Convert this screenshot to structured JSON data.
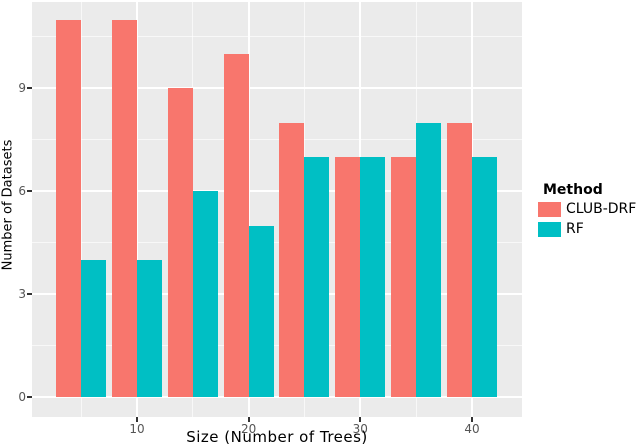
{
  "chart_data": {
    "type": "bar",
    "title": "",
    "xlabel": "Size (Number of Trees)",
    "ylabel": "Number of Datasets",
    "categories": [
      5,
      10,
      15,
      20,
      25,
      30,
      35,
      40
    ],
    "series": [
      {
        "name": "CLUB-DRF",
        "color": "#F8766D",
        "values": [
          11,
          11,
          9,
          10,
          8,
          7,
          7,
          8
        ]
      },
      {
        "name": "RF",
        "color": "#00BFC4",
        "values": [
          4,
          4,
          6,
          5,
          7,
          7,
          8,
          7
        ]
      }
    ],
    "x_tick_labels": [
      "10",
      "20",
      "30",
      "40"
    ],
    "x_tick_values": [
      10,
      20,
      30,
      40
    ],
    "x_minor_values": [
      5,
      15,
      25,
      35,
      45
    ],
    "y_tick_labels": [
      "0",
      "3",
      "6",
      "9"
    ],
    "y_tick_values": [
      0,
      3,
      6,
      9
    ],
    "y_minor_values": [
      1.5,
      4.5,
      7.5,
      10.5
    ],
    "ylim": [
      0,
      11.5
    ],
    "legend_position": "right",
    "grid": "on",
    "colors": {
      "panel_bg": "#EBEBEB",
      "grid_major": "#FFFFFF",
      "club_drf": "#F8766D",
      "rf": "#00BFC4",
      "tick_label": "#555555",
      "axis_title": "#000000"
    }
  },
  "legend": {
    "title": "Method",
    "entries": [
      {
        "label": "CLUB-DRF",
        "color": "#F8766D"
      },
      {
        "label": "RF",
        "color": "#00BFC4"
      }
    ]
  }
}
